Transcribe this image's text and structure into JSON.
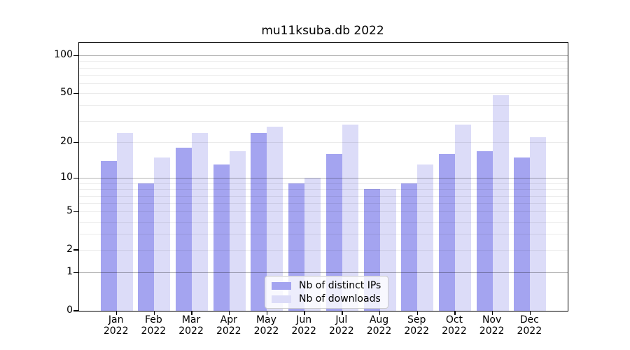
{
  "chart_data": {
    "type": "bar",
    "title": "mu11ksuba.db 2022",
    "categories": [
      "Jan",
      "Feb",
      "Mar",
      "Apr",
      "May",
      "Jun",
      "Jul",
      "Aug",
      "Sep",
      "Oct",
      "Nov",
      "Dec"
    ],
    "year": "2022",
    "series": [
      {
        "name": "Nb of distinct IPs",
        "color": "#a4a4f0",
        "values": [
          14,
          9,
          18,
          13,
          24,
          9,
          16,
          8,
          9,
          16,
          17,
          15
        ]
      },
      {
        "name": "Nb of downloads",
        "color": "#dcdcf8",
        "values": [
          24,
          15,
          24,
          17,
          27,
          10,
          28,
          8,
          13,
          28,
          48,
          22
        ]
      }
    ],
    "yscale": "log(1+y)",
    "ylim": [
      0,
      127
    ],
    "y_tick_labels": [
      "0",
      "1",
      "2",
      "5",
      "10",
      "20",
      "50",
      "100"
    ],
    "y_tick_values": [
      0,
      1,
      2,
      5,
      10,
      20,
      50,
      100
    ],
    "major_gridlines": [
      1,
      10,
      100
    ],
    "minor_gridlines": [
      2,
      3,
      4,
      5,
      6,
      7,
      8,
      9,
      20,
      30,
      40,
      50,
      60,
      70,
      80,
      90
    ],
    "grid": "on",
    "xlabel": "",
    "ylabel": "",
    "legend_position": "lower center"
  }
}
